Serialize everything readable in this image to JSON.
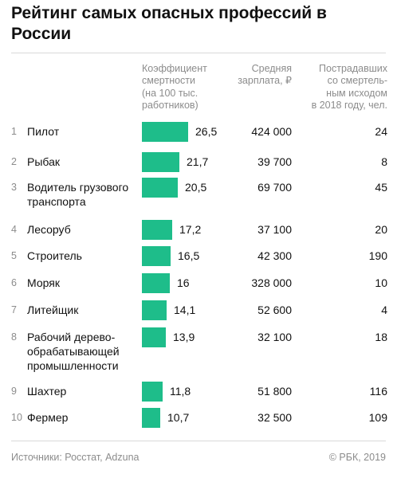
{
  "title": "Рейтинг самых опасных профессий в России",
  "headers": {
    "coefficient": "Коэффициент\nсмертности\n(на 100 тыс.\nработников)",
    "salary": "Средняя\nзарплата, ₽",
    "victims": "Пострадавших\nсо смертель-\nным исходом\nв 2018 году, чел."
  },
  "colors": {
    "bar": "#1ebd8a",
    "muted": "#8c8c8c"
  },
  "chart_data": {
    "type": "table",
    "title": "Рейтинг самых опасных профессий в России",
    "columns": [
      "Коэффициент смертности (на 100 тыс. работников)",
      "Средняя зарплата, ₽",
      "Пострадавших со смертельным исходом в 2018 году, чел."
    ],
    "rows": [
      {
        "rank": "1",
        "name": "Пилот",
        "coefficient": 26.5,
        "coefficient_label": "26,5",
        "salary": "424 000",
        "victims": "24"
      },
      {
        "rank": "2",
        "name": "Рыбак",
        "coefficient": 21.7,
        "coefficient_label": "21,7",
        "salary": "39 700",
        "victims": "8"
      },
      {
        "rank": "3",
        "name": "Водитель грузового\nтранспорта",
        "coefficient": 20.5,
        "coefficient_label": "20,5",
        "salary": "69 700",
        "victims": "45"
      },
      {
        "rank": "4",
        "name": "Лесоруб",
        "coefficient": 17.2,
        "coefficient_label": "17,2",
        "salary": "37 100",
        "victims": "20"
      },
      {
        "rank": "5",
        "name": "Строитель",
        "coefficient": 16.5,
        "coefficient_label": "16,5",
        "salary": "42 300",
        "victims": "190"
      },
      {
        "rank": "6",
        "name": "Моряк",
        "coefficient": 16,
        "coefficient_label": "16",
        "salary": "328 000",
        "victims": "10"
      },
      {
        "rank": "7",
        "name": "Литейщик",
        "coefficient": 14.1,
        "coefficient_label": "14,1",
        "salary": "52 600",
        "victims": "4"
      },
      {
        "rank": "8",
        "name": "Рабочий дерево-\nобрабатывающей\nпромышленности",
        "coefficient": 13.9,
        "coefficient_label": "13,9",
        "salary": "32 100",
        "victims": "18"
      },
      {
        "rank": "9",
        "name": "Шахтер",
        "coefficient": 11.8,
        "coefficient_label": "11,8",
        "salary": "51 800",
        "victims": "116"
      },
      {
        "rank": "10",
        "name": "Фермер",
        "coefficient": 10.7,
        "coefficient_label": "10,7",
        "salary": "32 500",
        "victims": "109"
      }
    ]
  },
  "footer": {
    "sources": "Источники: Росстат, Adzuna",
    "copyright": "© РБК, 2019"
  }
}
